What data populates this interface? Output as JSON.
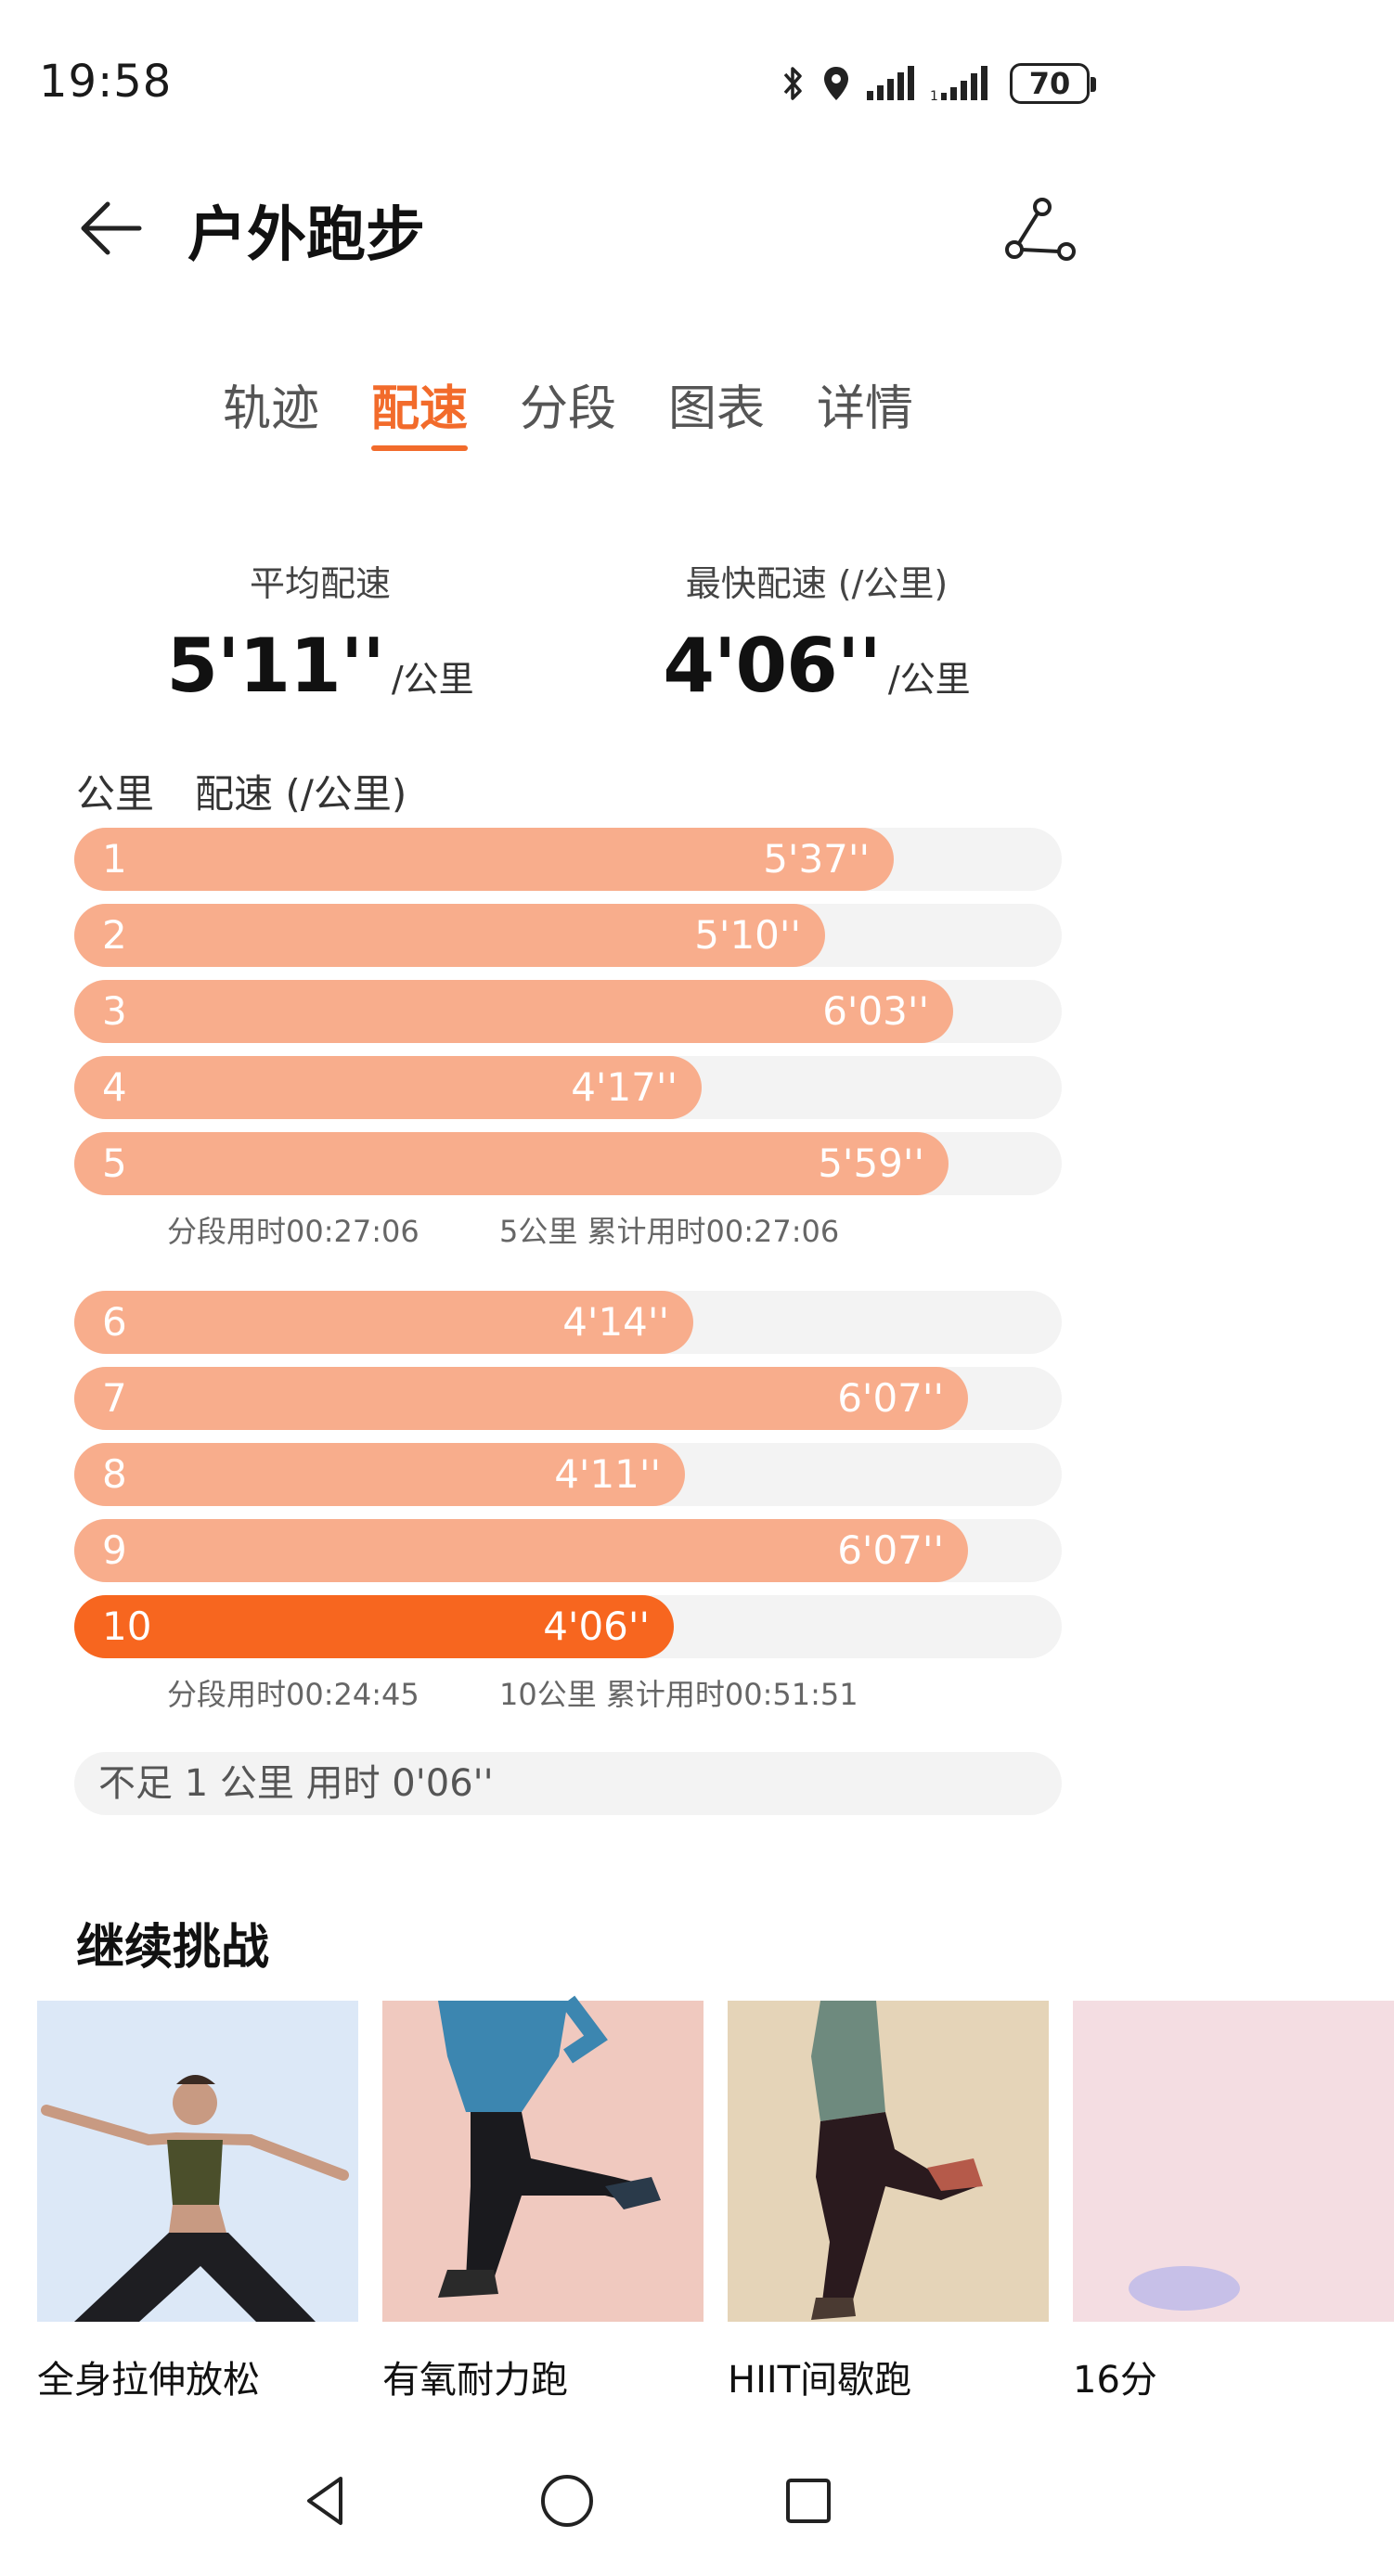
{
  "status_bar": {
    "time": "19:58",
    "battery": "70",
    "icons": [
      "bluetooth-icon",
      "location-icon",
      "signal-icon",
      "signal-icon"
    ]
  },
  "header": {
    "title": "户外跑步",
    "back_icon": "arrow-left-icon",
    "route_icon": "route-icon"
  },
  "tabs": [
    {
      "label": "轨迹",
      "active": false
    },
    {
      "label": "配速",
      "active": true
    },
    {
      "label": "分段",
      "active": false
    },
    {
      "label": "图表",
      "active": false
    },
    {
      "label": "详情",
      "active": false
    }
  ],
  "summary": {
    "avg_label": "平均配速",
    "avg_value": "5'11''",
    "avg_unit": "/公里",
    "fast_label": "最快配速 (/公里)",
    "fast_value": "4'06''",
    "fast_unit": "/公里"
  },
  "list_header": {
    "km_label": "公里",
    "pace_label": "配速 (/公里)"
  },
  "splits": [
    {
      "km": "1",
      "pace": "5'37''",
      "fill": 0.83,
      "active": false
    },
    {
      "km": "2",
      "pace": "5'10''",
      "fill": 0.76,
      "active": false
    },
    {
      "km": "3",
      "pace": "6'03''",
      "fill": 0.89,
      "active": false
    },
    {
      "km": "4",
      "pace": "4'17''",
      "fill": 0.635,
      "active": false
    },
    {
      "km": "5",
      "pace": "5'59''",
      "fill": 0.885,
      "active": false
    },
    {
      "km": "6",
      "pace": "4'14''",
      "fill": 0.627,
      "active": false
    },
    {
      "km": "7",
      "pace": "6'07''",
      "fill": 0.905,
      "active": false
    },
    {
      "km": "8",
      "pace": "4'11''",
      "fill": 0.618,
      "active": false
    },
    {
      "km": "9",
      "pace": "6'07''",
      "fill": 0.905,
      "active": false
    },
    {
      "km": "10",
      "pace": "4'06''",
      "fill": 0.607,
      "active": true
    }
  ],
  "segments": [
    {
      "segment_time": "分段用时00:27:06",
      "cumulative": "5公里 累计用时00:27:06"
    },
    {
      "segment_time": "分段用时00:24:45",
      "cumulative": "10公里 累计用时00:51:51"
    }
  ],
  "remainder": "不足 1 公里 用时 0'06''",
  "challenge": {
    "title": "继续挑战",
    "cards": [
      {
        "label": "全身拉伸放松",
        "bg": "#dce8f7"
      },
      {
        "label": "有氧耐力跑",
        "bg": "#f0c9bf"
      },
      {
        "label": "HIIT间歇跑",
        "bg": "#e5d4b8"
      },
      {
        "label": "16分",
        "bg": "#f4dde2"
      }
    ]
  },
  "colors": {
    "accent": "#f26b2b",
    "bar": "#f8ad8c",
    "bar_active": "#f7661f",
    "track": "#f3f3f3"
  }
}
